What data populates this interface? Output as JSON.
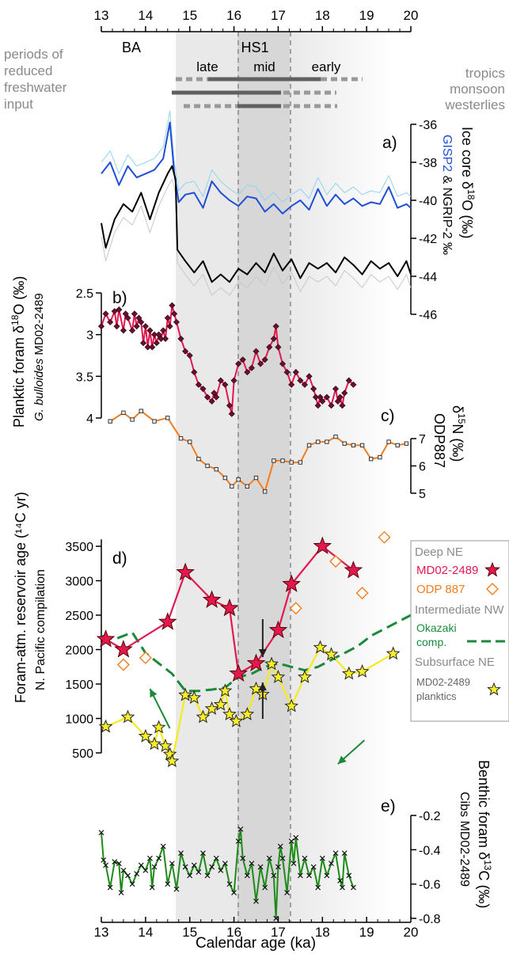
{
  "chart_data": [
    {
      "panel": "top",
      "type": "scale",
      "ticks": [
        "13",
        "14",
        "15",
        "16",
        "17",
        "18",
        "19",
        "20"
      ],
      "periods": {
        "ba": "BA",
        "hs1": "HS1",
        "late": "late",
        "mid": "mid",
        "early": "early"
      },
      "left_text": [
        "periods of",
        "reduced",
        "freshwater",
        "input"
      ],
      "right_text": [
        "tropics",
        "monsoon",
        "westerlies"
      ]
    },
    {
      "panel": "a)",
      "type": "line",
      "ylabel_parts": [
        "Ice core δ",
        "18",
        "O (‰)"
      ],
      "ylabel2_parts": [
        "GISP2",
        " & NGRIP-2 ‰"
      ],
      "ylim": [
        -46,
        -36
      ],
      "yticks": [
        "-36",
        "-38",
        "-40",
        "-42",
        "-44",
        "-46"
      ],
      "series": [
        {
          "name": "GISP2",
          "color": "#1f4fd6",
          "x": [
            13.0,
            13.2,
            13.4,
            13.6,
            13.8,
            14.0,
            14.2,
            14.4,
            14.55,
            14.65,
            14.75,
            14.9,
            15.1,
            15.3,
            15.5,
            15.7,
            15.9,
            16.1,
            16.3,
            16.5,
            16.7,
            16.9,
            17.1,
            17.3,
            17.5,
            17.7,
            17.9,
            18.1,
            18.3,
            18.5,
            18.7,
            18.9,
            19.1,
            19.3,
            19.5,
            19.7,
            19.9,
            20.0
          ],
          "y": [
            -38.6,
            -38.0,
            -39.2,
            -38.2,
            -38.8,
            -38.6,
            -38.4,
            -37.8,
            -35.9,
            -38.6,
            -40.1,
            -39.7,
            -39.6,
            -40.4,
            -39.0,
            -39.6,
            -40.0,
            -40.3,
            -39.8,
            -39.9,
            -40.6,
            -40.2,
            -40.7,
            -40.3,
            -40.0,
            -40.5,
            -39.4,
            -40.3,
            -39.7,
            -40.2,
            -39.9,
            -40.3,
            -40.1,
            -40.2,
            -39.3,
            -40.4,
            -40.2,
            -40.4
          ]
        },
        {
          "name": "NGRIP-2",
          "color": "#000000",
          "x": [
            13.0,
            13.1,
            13.3,
            13.5,
            13.7,
            13.9,
            14.1,
            14.3,
            14.5,
            14.6,
            14.68,
            14.72,
            14.9,
            15.1,
            15.3,
            15.5,
            15.7,
            15.9,
            16.1,
            16.3,
            16.5,
            16.7,
            16.9,
            17.1,
            17.3,
            17.5,
            17.7,
            17.9,
            18.1,
            18.3,
            18.5,
            18.7,
            18.9,
            19.1,
            19.3,
            19.5,
            19.7,
            19.9,
            20.0
          ],
          "y": [
            -41.2,
            -42.5,
            -41.0,
            -40.2,
            -40.6,
            -39.6,
            -41.0,
            -39.6,
            -38.6,
            -38.2,
            -38.9,
            -42.6,
            -43.2,
            -43.8,
            -43.2,
            -44.3,
            -43.9,
            -44.3,
            -43.6,
            -43.9,
            -43.3,
            -43.8,
            -42.8,
            -43.7,
            -43.1,
            -44.1,
            -43.3,
            -43.6,
            -43.3,
            -43.8,
            -43.0,
            -43.4,
            -43.9,
            -43.2,
            -43.6,
            -43.3,
            -44.0,
            -43.2,
            -43.9
          ]
        }
      ]
    },
    {
      "panel": "b)",
      "type": "line",
      "ylabel_parts": [
        "Planktic foram δ",
        "18",
        "O (‰)"
      ],
      "ylabel2_parts": [
        "G. bulloides",
        " MD02-2489"
      ],
      "ylim": [
        2.5,
        4.1
      ],
      "yticks": [
        "2.5",
        "3",
        "3.5",
        "4"
      ],
      "series": [
        {
          "name": "MD02-2489",
          "color": "#e3184f",
          "x": [
            13.0,
            13.1,
            13.2,
            13.3,
            13.35,
            13.4,
            13.5,
            13.55,
            13.6,
            13.7,
            13.75,
            13.8,
            13.85,
            13.9,
            13.95,
            14.0,
            14.05,
            14.1,
            14.15,
            14.2,
            14.25,
            14.3,
            14.35,
            14.4,
            14.45,
            14.5,
            14.55,
            14.6,
            14.65,
            14.7,
            14.8,
            14.9,
            15.0,
            15.1,
            15.2,
            15.3,
            15.4,
            15.5,
            15.55,
            15.6,
            15.7,
            15.8,
            15.9,
            15.95,
            16.0,
            16.1,
            16.2,
            16.3,
            16.4,
            16.5,
            16.6,
            16.7,
            16.8,
            16.9,
            16.95,
            17.0,
            17.1,
            17.2,
            17.3,
            17.4,
            17.5,
            17.6,
            17.7,
            17.8,
            17.85,
            17.9,
            17.95,
            18.0,
            18.1,
            18.2,
            18.3,
            18.35,
            18.4,
            18.45,
            18.5,
            18.6,
            18.7
          ],
          "y": [
            2.9,
            2.75,
            2.85,
            2.72,
            2.9,
            2.7,
            2.95,
            2.75,
            2.8,
            2.95,
            2.75,
            2.9,
            2.8,
            2.85,
            3.1,
            2.9,
            3.15,
            2.95,
            3.15,
            3.0,
            3.1,
            3.0,
            3.05,
            2.95,
            3.05,
            2.8,
            2.9,
            2.65,
            2.75,
            2.85,
            3.05,
            3.2,
            3.25,
            3.45,
            3.6,
            3.65,
            3.75,
            3.8,
            3.7,
            3.75,
            3.55,
            3.6,
            3.85,
            3.95,
            3.55,
            3.35,
            3.3,
            3.45,
            3.4,
            3.2,
            3.35,
            3.3,
            3.15,
            3.05,
            2.9,
            3.15,
            3.35,
            3.45,
            3.6,
            3.45,
            3.55,
            3.6,
            3.5,
            3.65,
            3.75,
            3.85,
            3.75,
            3.8,
            3.75,
            3.85,
            3.65,
            3.8,
            3.75,
            3.85,
            3.7,
            3.55,
            3.6
          ]
        }
      ]
    },
    {
      "panel": "c)",
      "type": "line",
      "ylabel_parts": [
        "δ",
        "15",
        "N (‰)"
      ],
      "ylabel2_parts": [
        "ODP887"
      ],
      "ylim": [
        5,
        7.5
      ],
      "yticks": [
        "5",
        "6",
        "7"
      ],
      "series": [
        {
          "name": "ODP887",
          "color": "#f27d1f",
          "x": [
            13.2,
            13.5,
            13.7,
            13.9,
            14.2,
            14.5,
            14.8,
            15.0,
            15.2,
            15.4,
            15.6,
            15.8,
            15.95,
            16.1,
            16.3,
            16.5,
            16.7,
            16.9,
            17.1,
            17.3,
            17.5,
            17.7,
            17.9,
            18.1,
            18.3,
            18.5,
            18.7,
            18.9,
            19.1,
            19.3,
            19.5,
            19.7,
            19.9
          ],
          "y": [
            7.1,
            7.35,
            7.15,
            7.4,
            7.1,
            7.2,
            6.6,
            6.5,
            6.0,
            5.8,
            5.7,
            5.45,
            5.2,
            5.4,
            5.2,
            5.45,
            5.05,
            5.95,
            5.95,
            5.9,
            5.9,
            6.4,
            6.5,
            6.5,
            6.65,
            6.45,
            6.4,
            6.4,
            6.0,
            6.05,
            6.5,
            6.4,
            6.45
          ]
        }
      ]
    },
    {
      "panel": "d)",
      "type": "scatter",
      "ylabel": "Foram-atm. reservoir age (¹⁴C yr)",
      "ylabel2": "N. Pacific compilation",
      "ylim": [
        200,
        3600
      ],
      "yticks": [
        "500",
        "1000",
        "1500",
        "2000",
        "2500",
        "3000",
        "3500"
      ],
      "legend_sections": [
        {
          "title": "Deep NE",
          "entries": [
            {
              "name": "MD02-2489",
              "color": "#e3184f",
              "marker": "star-red"
            },
            {
              "name": "ODP 887",
              "color": "#f27d1f",
              "marker": "diamond"
            }
          ]
        },
        {
          "title": "Intermediate NW",
          "entries": [
            {
              "name": "Okazaki comp.",
              "color": "#1a8a3a",
              "marker": "dashed"
            }
          ]
        },
        {
          "title": "Subsurface NE",
          "entries": [
            {
              "name": "MD02-2489 planktics",
              "color": "#555555",
              "marker": "star-yellow"
            }
          ]
        }
      ],
      "series": [
        {
          "name": "MD02-2489",
          "x": [
            13.1,
            13.5,
            14.5,
            14.9,
            15.5,
            15.9,
            16.1,
            16.5,
            17.0,
            17.3,
            18.0,
            18.7
          ],
          "y": [
            2150,
            2000,
            2400,
            3120,
            2720,
            2600,
            1650,
            1800,
            2280,
            2950,
            3500,
            3150
          ]
        },
        {
          "name": "ODP 887",
          "x": [
            13.5,
            14.0,
            17.4,
            18.3,
            18.9,
            19.4
          ],
          "y": [
            1780,
            1880,
            2600,
            3280,
            2820,
            3630
          ]
        },
        {
          "name": "Okazaki comp.",
          "x": [
            13.0,
            13.3,
            13.7,
            14.0,
            14.3,
            14.6,
            14.9,
            15.2,
            15.5,
            15.8,
            16.1,
            16.4,
            16.7,
            17.0,
            17.3,
            17.6,
            17.9,
            18.2,
            18.5,
            18.8,
            19.1,
            19.4,
            19.7,
            20.0
          ],
          "y": [
            2200,
            2150,
            2250,
            1950,
            1800,
            1650,
            1400,
            1400,
            1420,
            1450,
            1600,
            1650,
            1750,
            1800,
            1750,
            1700,
            1750,
            1850,
            1950,
            2050,
            2200,
            2300,
            2400,
            2500
          ]
        },
        {
          "name": "MD02-2489 planktics",
          "x": [
            13.1,
            13.6,
            14.0,
            14.2,
            14.3,
            14.45,
            14.55,
            14.6,
            14.9,
            15.1,
            15.3,
            15.5,
            15.7,
            15.8,
            15.9,
            16.05,
            16.3,
            16.5,
            16.65,
            16.85,
            17.0,
            17.3,
            17.6,
            17.95,
            18.2,
            18.6,
            18.9,
            19.6
          ],
          "y": [
            880,
            1020,
            740,
            630,
            870,
            600,
            480,
            380,
            1340,
            1300,
            1020,
            1140,
            1200,
            1400,
            1060,
            960,
            1060,
            1430,
            1350,
            1790,
            1600,
            1180,
            1600,
            2030,
            1930,
            1650,
            1680,
            1940
          ]
        }
      ]
    },
    {
      "panel": "e)",
      "type": "line",
      "xlabel": "Calendar age (ka)",
      "ylabel_parts": [
        "Benthic foram δ",
        "13",
        "C (‰)"
      ],
      "ylabel2_parts": [
        "Cibs MD02-2489"
      ],
      "ylim": [
        -0.8,
        -0.2
      ],
      "yticks": [
        "-0.2",
        "-0.4",
        "-0.6",
        "-0.8"
      ],
      "xticks": [
        "13",
        "14",
        "15",
        "16",
        "17",
        "18",
        "19",
        "20"
      ],
      "series": [
        {
          "name": "Cibs MD02-2489",
          "color": "#1f8a1a",
          "x": [
            13.0,
            13.05,
            13.1,
            13.2,
            13.3,
            13.4,
            13.45,
            13.5,
            13.6,
            13.7,
            13.8,
            13.9,
            14.0,
            14.1,
            14.15,
            14.2,
            14.3,
            14.4,
            14.5,
            14.6,
            14.7,
            14.8,
            14.9,
            15.0,
            15.1,
            15.2,
            15.3,
            15.4,
            15.5,
            15.6,
            15.7,
            15.8,
            15.9,
            16.0,
            16.1,
            16.15,
            16.2,
            16.3,
            16.4,
            16.5,
            16.6,
            16.7,
            16.8,
            16.9,
            16.95,
            17.0,
            17.05,
            17.1,
            17.2,
            17.3,
            17.35,
            17.4,
            17.5,
            17.6,
            17.7,
            17.8,
            17.9,
            18.0,
            18.1,
            18.2,
            18.3,
            18.4,
            18.45,
            18.5,
            18.6,
            18.7
          ],
          "y": [
            -0.3,
            -0.46,
            -0.49,
            -0.62,
            -0.47,
            -0.48,
            -0.65,
            -0.52,
            -0.55,
            -0.6,
            -0.54,
            -0.49,
            -0.52,
            -0.45,
            -0.62,
            -0.5,
            -0.45,
            -0.38,
            -0.6,
            -0.48,
            -0.63,
            -0.42,
            -0.5,
            -0.55,
            -0.49,
            -0.53,
            -0.42,
            -0.55,
            -0.5,
            -0.45,
            -0.52,
            -0.48,
            -0.6,
            -0.65,
            -0.35,
            -0.28,
            -0.45,
            -0.55,
            -0.48,
            -0.7,
            -0.5,
            -0.62,
            -0.45,
            -0.55,
            -0.8,
            -0.5,
            -0.38,
            -0.45,
            -0.65,
            -0.35,
            -0.48,
            -0.33,
            -0.55,
            -0.45,
            -0.55,
            -0.5,
            -0.62,
            -0.45,
            -0.55,
            -0.48,
            -0.42,
            -0.58,
            -0.62,
            -0.42,
            -0.55,
            -0.62
          ]
        }
      ]
    }
  ]
}
